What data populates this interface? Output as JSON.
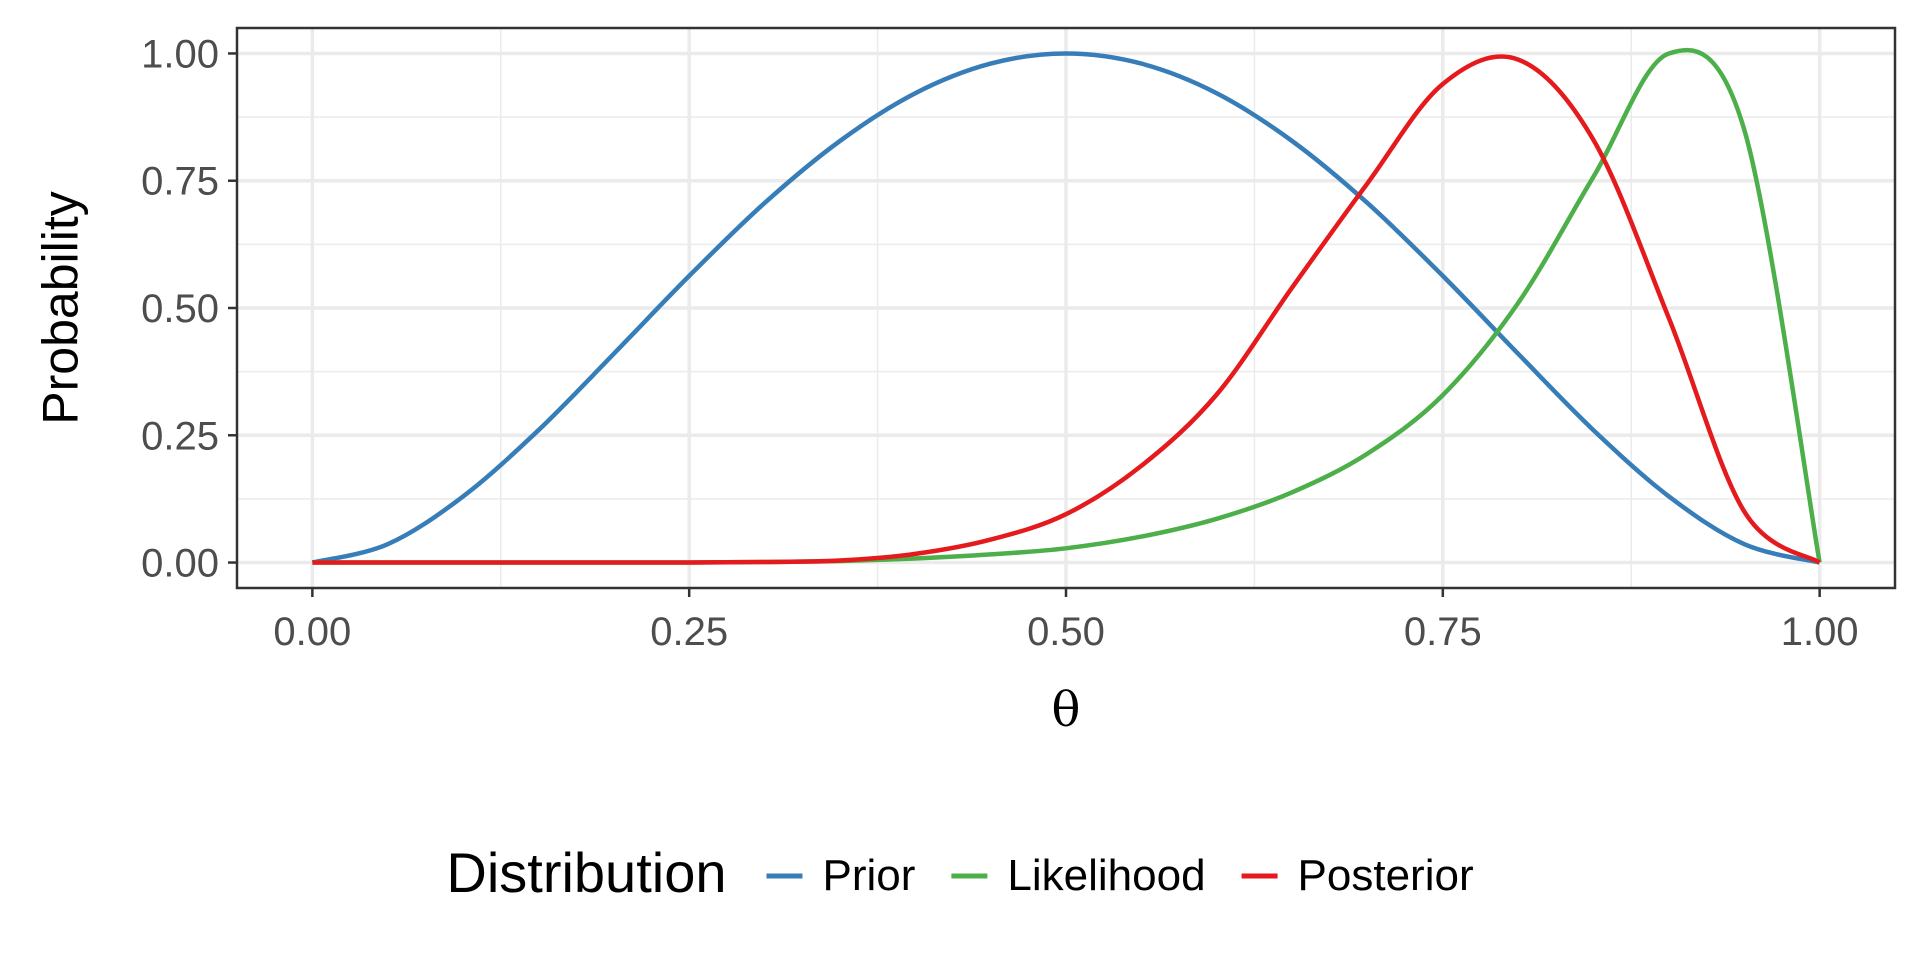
{
  "chart_data": {
    "type": "line",
    "xlabel": "θ",
    "ylabel": "Probability",
    "xlim": [
      -0.05,
      1.05
    ],
    "ylim": [
      -0.05,
      1.05
    ],
    "x_ticks": [
      0.0,
      0.25,
      0.5,
      0.75,
      1.0
    ],
    "x_tick_labels": [
      "0.00",
      "0.25",
      "0.50",
      "0.75",
      "1.00"
    ],
    "y_ticks": [
      0.0,
      0.25,
      0.5,
      0.75,
      1.0
    ],
    "y_tick_labels": [
      "0.00",
      "0.25",
      "0.50",
      "0.75",
      "1.00"
    ],
    "grid": true,
    "legend": {
      "title": "Distribution",
      "position": "bottom"
    },
    "x": [
      0.0,
      0.05,
      0.1,
      0.15,
      0.2,
      0.25,
      0.3,
      0.35,
      0.4,
      0.45,
      0.5,
      0.55,
      0.6,
      0.65,
      0.7,
      0.75,
      0.8,
      0.85,
      0.9,
      0.95,
      1.0
    ],
    "series": [
      {
        "name": "Prior",
        "color": "#377EB8",
        "values": [
          0.0,
          0.036,
          0.13,
          0.26,
          0.41,
          0.563,
          0.706,
          0.828,
          0.922,
          0.98,
          1.0,
          0.98,
          0.922,
          0.828,
          0.706,
          0.563,
          0.41,
          0.26,
          0.13,
          0.036,
          0.0
        ]
      },
      {
        "name": "Likelihood",
        "color": "#4DAF4A",
        "values": [
          0.0,
          0.0,
          0.0,
          0.0,
          0.0,
          0.0,
          0.001,
          0.003,
          0.008,
          0.016,
          0.028,
          0.051,
          0.086,
          0.138,
          0.214,
          0.329,
          0.51,
          0.758,
          1.0,
          0.85,
          0.0
        ]
      },
      {
        "name": "Posterior",
        "color": "#E41A1C",
        "values": [
          0.0,
          0.0,
          0.0,
          0.0,
          0.0,
          0.0,
          0.001,
          0.004,
          0.017,
          0.045,
          0.095,
          0.19,
          0.33,
          0.54,
          0.745,
          0.94,
          0.988,
          0.83,
          0.48,
          0.1,
          0.0
        ]
      }
    ]
  }
}
